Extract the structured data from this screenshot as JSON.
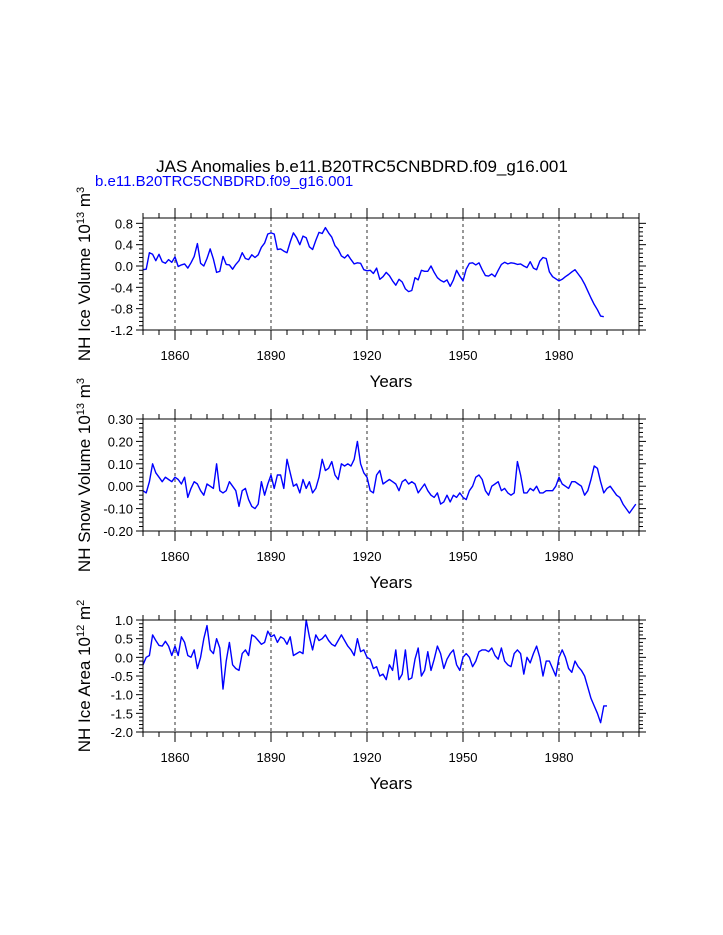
{
  "title": "JAS Anomalies b.e11.B20TRC5CNBDRD.f09_g16.001",
  "subtitle": "b.e11.B20TRC5CNBDRD.f09_g16.001",
  "colors": {
    "series": "#0000ff",
    "axis": "#000000",
    "subtitle": "#0000ff"
  },
  "chart_data": [
    {
      "type": "line",
      "ylabel": "NH Ice Volume 10",
      "ylabel_sup": "13",
      "ylabel_unit": "m",
      "ylabel_unit_sup": "3",
      "xlabel": "Years",
      "xlim": [
        1850,
        2005
      ],
      "ylim": [
        -1.2,
        0.9
      ],
      "yticks": [
        -1.2,
        -0.8,
        -0.4,
        0.0,
        0.4,
        0.8
      ],
      "ytick_labels": [
        "-1.2",
        "-0.8",
        "-0.4",
        "0.0",
        "0.4",
        "0.8"
      ],
      "xticks": [
        1860,
        1890,
        1920,
        1950,
        1980
      ],
      "xtick_labels": [
        "1860",
        "1890",
        "1920",
        "1950",
        "1980"
      ],
      "start_year": 1850,
      "series": [
        {
          "name": "NH Ice Volume",
          "values": [
            -0.07,
            -0.06,
            0.25,
            0.22,
            0.1,
            0.22,
            0.08,
            0.05,
            0.12,
            0.07,
            0.17,
            -0.01,
            0.02,
            0.04,
            -0.04,
            0.06,
            0.18,
            0.42,
            0.05,
            0.0,
            0.14,
            0.32,
            0.13,
            -0.12,
            -0.1,
            0.18,
            0.03,
            0.02,
            -0.06,
            0.03,
            0.1,
            0.25,
            0.14,
            0.12,
            0.21,
            0.16,
            0.21,
            0.35,
            0.43,
            0.6,
            0.62,
            0.6,
            0.31,
            0.32,
            0.28,
            0.25,
            0.45,
            0.62,
            0.53,
            0.4,
            0.56,
            0.53,
            0.36,
            0.31,
            0.48,
            0.63,
            0.61,
            0.72,
            0.62,
            0.54,
            0.38,
            0.31,
            0.19,
            0.15,
            0.21,
            0.12,
            0.04,
            0.06,
            0.05,
            -0.07,
            -0.09,
            -0.08,
            -0.14,
            -0.04,
            -0.25,
            -0.2,
            -0.12,
            -0.18,
            -0.28,
            -0.36,
            -0.25,
            -0.3,
            -0.43,
            -0.48,
            -0.46,
            -0.22,
            -0.26,
            -0.08,
            -0.1,
            -0.1,
            0.0,
            -0.12,
            -0.22,
            -0.27,
            -0.3,
            -0.26,
            -0.38,
            -0.26,
            -0.08,
            -0.19,
            -0.28,
            -0.06,
            0.05,
            0.06,
            0.02,
            0.06,
            -0.07,
            -0.18,
            -0.19,
            -0.15,
            -0.2,
            -0.08,
            0.03,
            0.07,
            0.04,
            0.06,
            0.05,
            0.03,
            0.04,
            0.0,
            -0.03,
            0.08,
            -0.04,
            -0.07,
            0.09,
            0.16,
            0.14,
            -0.11,
            -0.2,
            -0.24,
            -0.28,
            -0.25,
            -0.2,
            -0.16,
            -0.11,
            -0.07,
            -0.15,
            -0.23,
            -0.34,
            -0.47,
            -0.6,
            -0.72,
            -0.82,
            -0.94,
            -0.95
          ]
        }
      ]
    },
    {
      "type": "line",
      "ylabel": "NH Snow Volume 10",
      "ylabel_sup": "13",
      "ylabel_unit": "m",
      "ylabel_unit_sup": "3",
      "xlabel": "Years",
      "xlim": [
        1850,
        2005
      ],
      "ylim": [
        -0.2,
        0.3
      ],
      "yticks": [
        -0.2,
        -0.1,
        0.0,
        0.1,
        0.2,
        0.3
      ],
      "ytick_labels": [
        "-0.20",
        "-0.10",
        "0.00",
        "0.10",
        "0.20",
        "0.30"
      ],
      "xticks": [
        1860,
        1890,
        1920,
        1950,
        1980
      ],
      "xtick_labels": [
        "1860",
        "1890",
        "1920",
        "1950",
        "1980"
      ],
      "start_year": 1850,
      "series": [
        {
          "name": "NH Snow Volume",
          "values": [
            -0.02,
            -0.03,
            0.02,
            0.1,
            0.06,
            0.04,
            0.02,
            0.04,
            0.03,
            0.02,
            0.04,
            0.03,
            0.01,
            0.04,
            -0.05,
            -0.01,
            0.02,
            0.01,
            -0.02,
            -0.04,
            0.01,
            0.0,
            -0.01,
            0.1,
            -0.02,
            -0.03,
            -0.02,
            0.02,
            0.0,
            -0.02,
            -0.09,
            -0.02,
            -0.01,
            -0.06,
            -0.09,
            -0.1,
            -0.08,
            0.02,
            -0.04,
            0.01,
            0.05,
            -0.01,
            0.05,
            0.05,
            -0.01,
            0.12,
            0.06,
            0.0,
            0.01,
            -0.03,
            0.03,
            -0.01,
            0.02,
            -0.03,
            -0.01,
            0.04,
            0.12,
            0.07,
            0.08,
            0.11,
            0.05,
            0.03,
            0.1,
            0.09,
            0.1,
            0.09,
            0.12,
            0.2,
            0.1,
            0.06,
            0.04,
            -0.02,
            -0.03,
            0.05,
            0.07,
            0.01,
            0.02,
            0.03,
            0.02,
            0.01,
            -0.02,
            0.02,
            0.03,
            0.01,
            0.02,
            0.01,
            -0.03,
            -0.01,
            0.01,
            -0.02,
            -0.04,
            -0.05,
            -0.03,
            -0.08,
            -0.07,
            -0.04,
            -0.07,
            -0.04,
            -0.05,
            -0.03,
            -0.05,
            -0.06,
            -0.02,
            0.0,
            0.04,
            0.05,
            0.03,
            -0.02,
            -0.04,
            0.0,
            0.01,
            0.02,
            -0.02,
            -0.01,
            -0.03,
            -0.04,
            -0.03,
            0.11,
            0.05,
            -0.03,
            -0.03,
            -0.01,
            -0.02,
            0.0,
            -0.03,
            -0.03,
            -0.02,
            -0.02,
            -0.02,
            0.0,
            0.04,
            0.01,
            0.0,
            -0.01,
            0.02,
            0.02,
            0.01,
            0.0,
            -0.04,
            -0.02,
            0.03,
            0.09,
            0.08,
            0.02,
            -0.03,
            -0.01,
            0.0,
            -0.02,
            -0.04,
            -0.05,
            -0.08,
            -0.1,
            -0.12,
            -0.1,
            -0.08
          ]
        }
      ]
    },
    {
      "type": "line",
      "ylabel": "NH Ice Area 10",
      "ylabel_sup": "12",
      "ylabel_unit": "m",
      "ylabel_unit_sup": "2",
      "xlabel": "Years",
      "xlim": [
        1850,
        2005
      ],
      "ylim": [
        -2.0,
        1.0
      ],
      "yticks": [
        -2.0,
        -1.5,
        -1.0,
        -0.5,
        0.0,
        0.5,
        1.0
      ],
      "ytick_labels": [
        "-2.0",
        "-1.5",
        "-1.0",
        "-0.5",
        "0.0",
        "0.5",
        "1.0"
      ],
      "xticks": [
        1860,
        1890,
        1920,
        1950,
        1980
      ],
      "xtick_labels": [
        "1860",
        "1890",
        "1920",
        "1950",
        "1980"
      ],
      "start_year": 1850,
      "series": [
        {
          "name": "NH Ice Area",
          "values": [
            -0.2,
            0.0,
            0.05,
            0.6,
            0.45,
            0.32,
            0.3,
            0.43,
            0.3,
            0.05,
            0.3,
            0.05,
            0.55,
            0.4,
            0.05,
            0.0,
            0.2,
            -0.3,
            0.0,
            0.5,
            0.85,
            0.2,
            0.1,
            0.5,
            0.25,
            -0.85,
            -0.1,
            0.4,
            -0.2,
            -0.3,
            -0.35,
            0.1,
            0.2,
            0.05,
            0.6,
            0.55,
            0.45,
            0.35,
            0.4,
            0.7,
            0.55,
            0.6,
            0.4,
            0.55,
            0.5,
            0.35,
            0.55,
            0.05,
            0.1,
            0.15,
            0.1,
            1.0,
            0.55,
            0.2,
            0.6,
            0.45,
            0.5,
            0.6,
            0.45,
            0.35,
            0.3,
            0.45,
            0.6,
            0.45,
            0.3,
            0.2,
            0.05,
            0.5,
            0.15,
            0.2,
            0.0,
            -0.05,
            -0.3,
            -0.25,
            -0.5,
            -0.45,
            -0.6,
            -0.2,
            -0.35,
            0.2,
            -0.6,
            -0.45,
            0.2,
            -0.6,
            -0.55,
            -0.05,
            0.25,
            -0.5,
            -0.35,
            0.15,
            -0.35,
            -0.05,
            0.3,
            0.1,
            -0.3,
            -0.05,
            0.1,
            0.2,
            -0.2,
            -0.35,
            0.0,
            0.1,
            0.0,
            -0.25,
            -0.1,
            0.15,
            0.2,
            0.2,
            0.15,
            0.25,
            0.05,
            -0.05,
            0.25,
            -0.1,
            -0.2,
            -0.25,
            0.1,
            0.2,
            0.1,
            -0.45,
            0.0,
            -0.15,
            0.1,
            0.3,
            0.0,
            -0.5,
            -0.1,
            -0.1,
            -0.3,
            -0.5,
            0.0,
            0.2,
            0.0,
            -0.3,
            -0.4,
            -0.1,
            -0.25,
            -0.35,
            -0.5,
            -0.8,
            -1.1,
            -1.3,
            -1.5,
            -1.75,
            -1.3,
            -1.3
          ]
        }
      ]
    }
  ]
}
